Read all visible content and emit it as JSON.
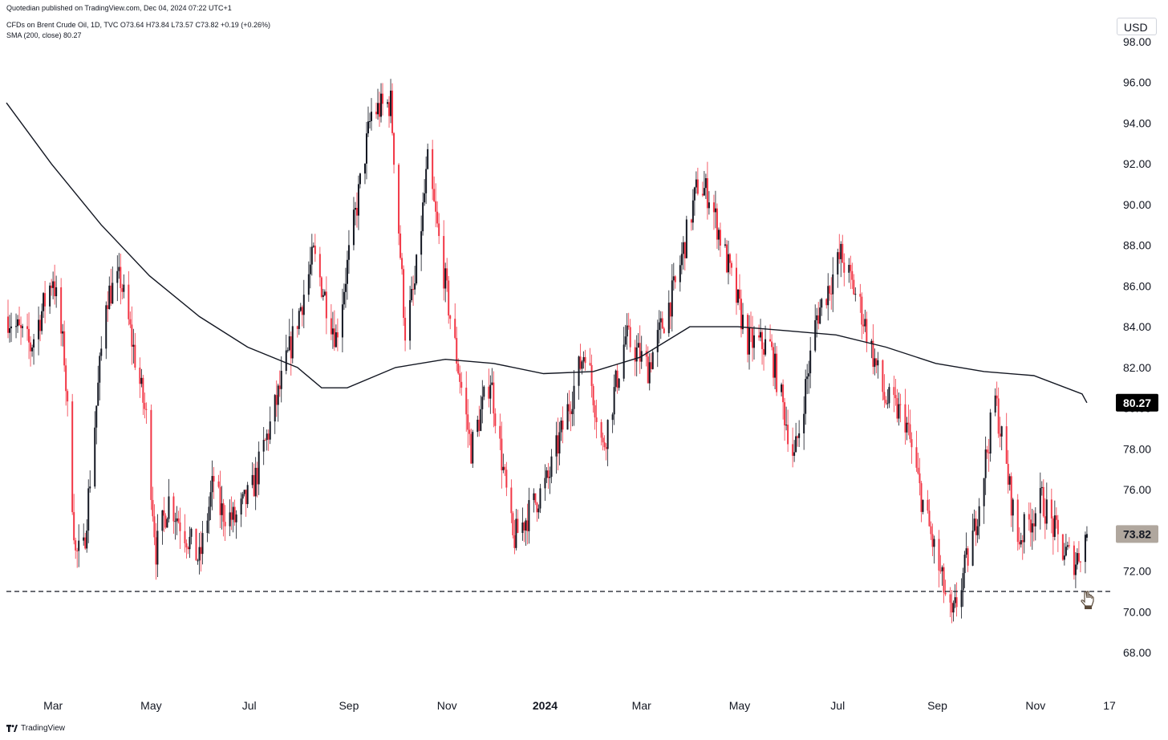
{
  "header": {
    "published": "Quotedian published on TradingView.com, Dec 04, 2024 07:22 UTC+1",
    "symbol_line": "CFDs on Brent Crude Oil, 1D, TVC  O73.64  H73.84  L73.57  C73.82  +0.19 (+0.26%)",
    "sma_line": "SMA (200, close)  80.27"
  },
  "currency": "USD",
  "footer": {
    "brand": "TradingView",
    "logo_icon": "tradingview-logo-icon"
  },
  "colors": {
    "up": "#131722",
    "down": "#f23645",
    "sma": "#131722",
    "last_price_tag": "#b0a79e"
  },
  "chart_data": {
    "type": "line",
    "title": "CFDs on Brent Crude Oil, 1D, TVC",
    "ylabel": "USD",
    "ylim": [
      66.8,
      99.0
    ],
    "y_ticks": [
      "98.00",
      "96.00",
      "94.00",
      "92.00",
      "90.00",
      "88.00",
      "86.00",
      "84.00",
      "82.00",
      "80.00",
      "78.00",
      "76.00",
      "74.00",
      "72.00",
      "70.00",
      "68.00"
    ],
    "x_ticks": [
      "Mar",
      "May",
      "Jul",
      "Sep",
      "Nov",
      "2024",
      "Mar",
      "May",
      "Jul",
      "Sep",
      "Nov",
      "17"
    ],
    "x_tick_dates": [
      "2023-03-01",
      "2023-05-01",
      "2023-07-01",
      "2023-09-01",
      "2023-11-01",
      "2024-01-01",
      "2024-03-01",
      "2024-05-01",
      "2024-07-01",
      "2024-09-01",
      "2024-11-01",
      "2024-12-17"
    ],
    "x_range": [
      "2023-01-31",
      "2024-12-18"
    ],
    "series": [
      {
        "name": "CFDs on Brent Crude Oil",
        "x": [
          "2023-02-01",
          "2023-02-15",
          "2023-03-01",
          "2023-03-08",
          "2023-03-15",
          "2023-03-20",
          "2023-04-03",
          "2023-04-12",
          "2023-04-28",
          "2023-05-04",
          "2023-05-12",
          "2023-05-31",
          "2023-06-09",
          "2023-06-13",
          "2023-06-22",
          "2023-07-03",
          "2023-07-17",
          "2023-08-10",
          "2023-08-24",
          "2023-09-04",
          "2023-09-15",
          "2023-09-27",
          "2023-10-06",
          "2023-10-12",
          "2023-10-20",
          "2023-11-03",
          "2023-11-16",
          "2023-11-28",
          "2023-12-12",
          "2024-01-03",
          "2024-01-26",
          "2024-02-06",
          "2024-02-20",
          "2024-03-05",
          "2024-03-22",
          "2024-04-05",
          "2024-04-12",
          "2024-04-22",
          "2024-05-06",
          "2024-05-20",
          "2024-06-04",
          "2024-06-18",
          "2024-07-03",
          "2024-07-15",
          "2024-07-30",
          "2024-08-12",
          "2024-08-21",
          "2024-09-10",
          "2024-09-24",
          "2024-10-07",
          "2024-10-21",
          "2024-11-05",
          "2024-11-18",
          "2024-11-26",
          "2024-12-03"
        ],
        "values": [
          84.5,
          83.0,
          86.5,
          82.5,
          72.8,
          73.0,
          85.5,
          86.3,
          79.5,
          73.0,
          75.5,
          72.5,
          76.5,
          75.0,
          74.5,
          76.0,
          80.0,
          87.5,
          83.5,
          89.0,
          94.5,
          95.0,
          83.8,
          86.0,
          92.0,
          84.5,
          78.0,
          81.5,
          73.5,
          76.5,
          83.0,
          78.0,
          83.5,
          82.0,
          86.0,
          91.0,
          90.5,
          87.5,
          83.3,
          83.0,
          77.5,
          84.5,
          87.5,
          85.0,
          80.5,
          79.5,
          76.0,
          69.5,
          74.0,
          80.5,
          73.5,
          75.5,
          73.0,
          72.5,
          73.82
        ]
      },
      {
        "name": "SMA (200, close)",
        "x": [
          "2023-01-31",
          "2023-02-28",
          "2023-03-31",
          "2023-04-30",
          "2023-05-31",
          "2023-06-30",
          "2023-07-31",
          "2023-08-15",
          "2023-08-31",
          "2023-09-30",
          "2023-10-31",
          "2023-11-30",
          "2023-12-31",
          "2024-01-31",
          "2024-02-29",
          "2024-03-31",
          "2024-04-30",
          "2024-05-31",
          "2024-06-30",
          "2024-07-31",
          "2024-08-31",
          "2024-09-30",
          "2024-10-31",
          "2024-11-30",
          "2024-12-03"
        ],
        "values": [
          95.0,
          92.0,
          89.0,
          86.5,
          84.5,
          83.0,
          82.0,
          81.0,
          81.0,
          82.0,
          82.4,
          82.2,
          81.7,
          81.8,
          82.5,
          84.0,
          84.0,
          83.8,
          83.6,
          83.0,
          82.2,
          81.8,
          81.6,
          80.7,
          80.27
        ]
      }
    ],
    "support_line": 71.0,
    "last_values": {
      "sma": "80.27",
      "close": "73.82"
    },
    "grid": false,
    "legend": "top-left"
  }
}
